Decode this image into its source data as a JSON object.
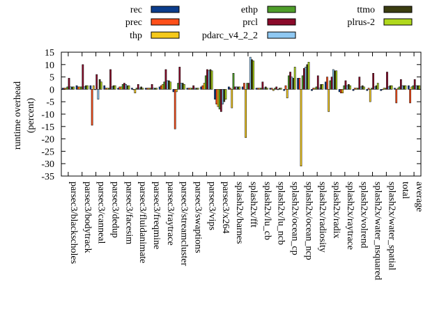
{
  "chart_data": {
    "type": "bar",
    "title": "",
    "xlabel": "",
    "ylabel": "runtime overhead",
    "ylabel_sub": "(percent)",
    "ylim": [
      -35,
      15
    ],
    "yticks": [
      15,
      10,
      5,
      0,
      -5,
      -10,
      -15,
      -20,
      -25,
      -30,
      -35
    ],
    "grid": false,
    "legend_position": "top",
    "categories": [
      "parsec3/blackscholes",
      "parsec3/bodytrack",
      "parsec3/canneal",
      "parsec3/dedup",
      "parsec3/facesim",
      "parsec3/fluidanimate",
      "parsec3/freqmine",
      "parsec3/raytrace",
      "parsec3/streamcluster",
      "parsec3/swaptions",
      "parsec3/vips",
      "parsec3/x264",
      "splash2x/barnes",
      "splash2x/fft",
      "splash2x/lu_cb",
      "splash2x/lu_ncb",
      "splash2x/ocean_cp",
      "splash2x/ocean_ncp",
      "splash2x/radiosity",
      "splash2x/radix",
      "splash2x/raytrace",
      "splash2x/volrend",
      "splash2x/water_nsquared",
      "splash2x/water_spatial",
      "total",
      "average"
    ],
    "series": [
      {
        "name": "rec",
        "color": "#0b3d8c",
        "values": [
          0.5,
          1.5,
          1.5,
          1.5,
          0.5,
          0.5,
          0.5,
          1.0,
          -1.0,
          0.5,
          1.0,
          -4.0,
          1.0,
          1.0,
          0.5,
          0.5,
          -0.5,
          4.5,
          -0.5,
          3.0,
          -1.0,
          -0.5,
          -0.5,
          -0.5,
          0.5,
          1.5
        ]
      },
      {
        "name": "prec",
        "color": "#ff4f1a",
        "values": [
          0.5,
          1.0,
          -14.5,
          0.5,
          1.0,
          0.0,
          0.5,
          1.5,
          -16.0,
          0.5,
          1.5,
          -6.0,
          0.5,
          2.5,
          0.5,
          0.5,
          1.5,
          4.5,
          0.5,
          5.0,
          -1.5,
          0.5,
          0.5,
          0.0,
          -5.5,
          -5.5
        ]
      },
      {
        "name": "thp",
        "color": "#f5c91a",
        "values": [
          0.5,
          1.0,
          1.5,
          0.5,
          1.0,
          -1.5,
          0.5,
          2.0,
          -1.0,
          0.5,
          2.5,
          -7.0,
          -7.5,
          -19.5,
          0.5,
          -0.5,
          -3.5,
          -31.0,
          0.5,
          -9.0,
          -1.5,
          0.5,
          -5.0,
          0.5,
          0.5,
          1.0
        ]
      },
      {
        "name": "ethp",
        "color": "#4f9e2a",
        "values": [
          1.0,
          1.0,
          0.0,
          0.5,
          2.0,
          0.5,
          0.5,
          3.0,
          2.5,
          0.5,
          5.5,
          -8.0,
          6.5,
          2.5,
          0.5,
          0.5,
          5.5,
          5.5,
          1.0,
          3.5,
          1.5,
          0.5,
          0.5,
          0.5,
          1.0,
          1.5
        ]
      },
      {
        "name": "prcl",
        "color": "#8a0a2a",
        "values": [
          4.5,
          10.0,
          6.0,
          8.0,
          2.5,
          2.0,
          2.0,
          8.0,
          9.0,
          1.5,
          8.0,
          -9.0,
          1.0,
          2.5,
          3.0,
          1.0,
          7.0,
          8.5,
          5.5,
          5.0,
          3.5,
          5.0,
          6.5,
          7.0,
          4.0,
          4.0
        ]
      },
      {
        "name": "pdarc_v4_2_2",
        "color": "#8fc8f2",
        "values": [
          1.0,
          1.0,
          -4.0,
          1.0,
          2.0,
          0.5,
          0.5,
          3.5,
          2.5,
          0.5,
          7.5,
          -6.0,
          1.0,
          13.0,
          0.5,
          0.0,
          5.0,
          9.0,
          0.5,
          8.0,
          1.5,
          1.0,
          1.0,
          1.0,
          1.5,
          1.5
        ]
      },
      {
        "name": "ttmo",
        "color": "#3b3d10",
        "values": [
          1.0,
          1.5,
          4.0,
          1.5,
          1.5,
          1.0,
          0.5,
          3.5,
          2.5,
          0.5,
          8.0,
          -5.0,
          1.0,
          12.0,
          1.0,
          0.5,
          4.5,
          10.0,
          2.0,
          7.5,
          2.0,
          1.5,
          1.5,
          1.5,
          1.5,
          1.5
        ]
      },
      {
        "name": "plrus-2",
        "color": "#b0d81c",
        "values": [
          1.0,
          1.5,
          3.0,
          1.5,
          1.5,
          0.5,
          0.5,
          3.0,
          2.0,
          0.5,
          7.5,
          -4.0,
          1.0,
          11.5,
          0.5,
          0.5,
          9.0,
          11.0,
          2.0,
          7.5,
          1.5,
          1.0,
          2.5,
          1.5,
          1.5,
          1.5
        ]
      }
    ]
  }
}
